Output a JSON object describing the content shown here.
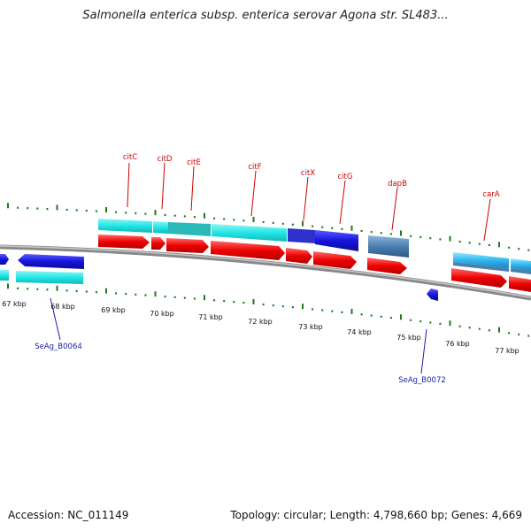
{
  "title": "Salmonella enterica subsp. enterica serovar Agona str. SL483...",
  "accession_label": "Accession: NC_011149",
  "summary_label": "Topology: circular; Length: 4,798,660 bp; Genes: 4,669",
  "colors": {
    "label_upper": "#cc0000",
    "label_lower": "#1a1aaa",
    "tick": "#1f7a1f",
    "backbone": "#888888",
    "cyan": "#22e6e6",
    "red": "#ee0000",
    "blue": "#1515dd",
    "steel": "#4a7fb0"
  },
  "kbp_labels": [
    "67 kbp",
    "68 kbp",
    "69 kbp",
    "70 kbp",
    "71 kbp",
    "72 kbp",
    "73 kbp",
    "74 kbp",
    "75 kbp",
    "76 kbp",
    "77 kbp"
  ],
  "gene_labels_upper": [
    "citC",
    "citD",
    "citE",
    "citF",
    "citX",
    "citG",
    "dapB",
    "carA"
  ],
  "gene_labels_lower": [
    "SeAg_B0064",
    "SeAg_B0072"
  ]
}
